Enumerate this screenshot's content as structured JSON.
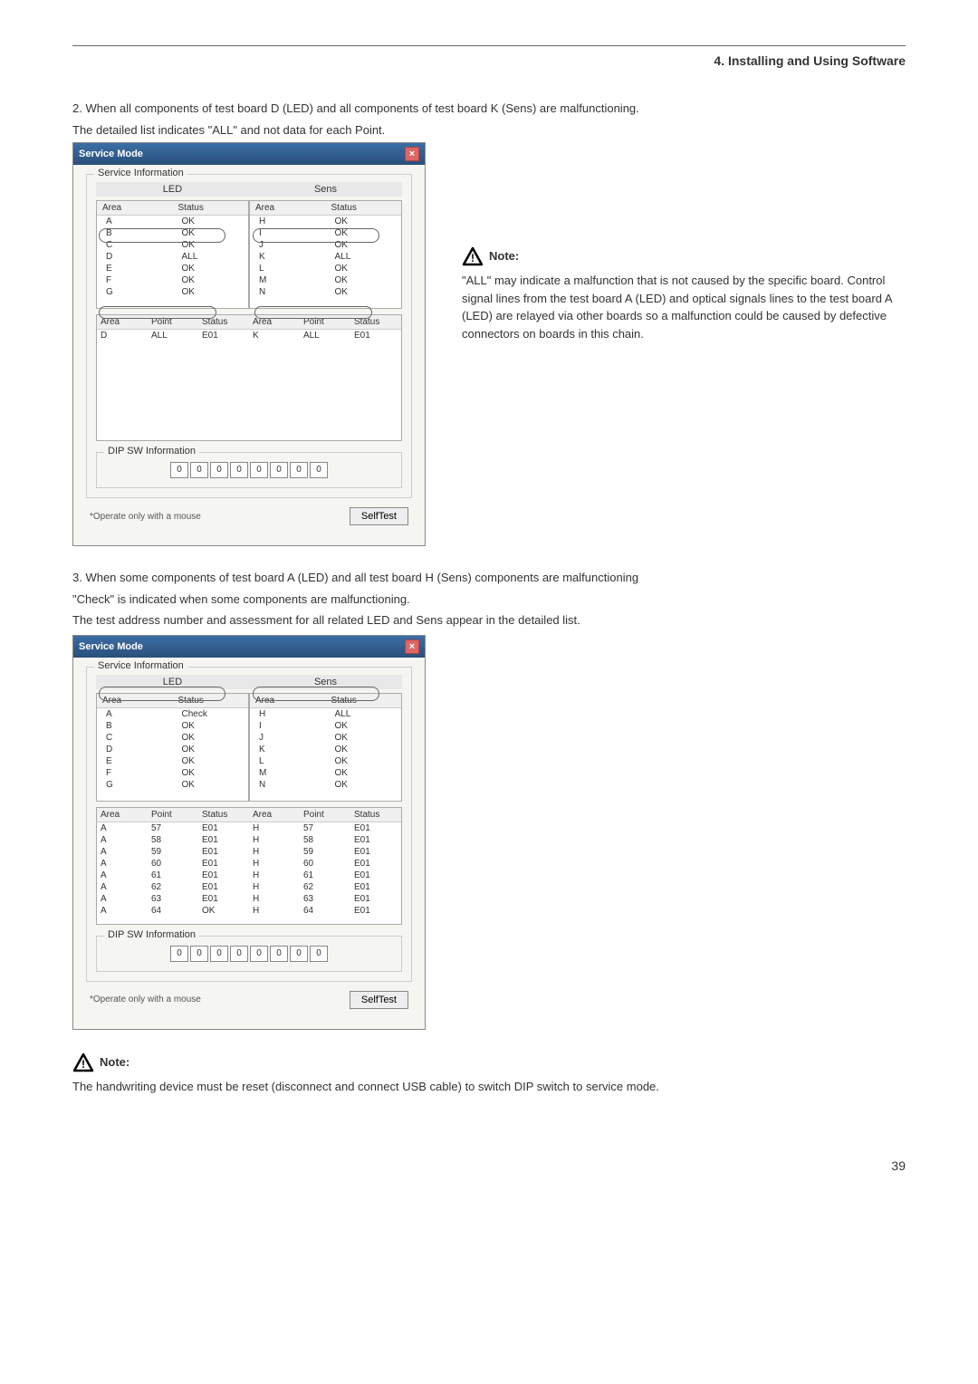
{
  "header": {
    "title": "4. Installing and Using Software"
  },
  "p1a": "2.  When all components of test board D (LED) and all components of test board K (Sens) are malfunctioning.",
  "p1b": "The detailed list indicates \"ALL\" and not data for each Point.",
  "p2a": "3.  When some components of test board A (LED) and all test board H (Sens) components are malfunctioning",
  "p2b": "\"Check\" is indicated when some components are malfunctioning.",
  "p2c": "The test address number and assessment for all related LED and Sens appear in the detailed list.",
  "dialog": {
    "title": "Service Mode",
    "svc_label": "Service Information",
    "led_label": "LED",
    "sens_label": "Sens",
    "area_hdr": "Area",
    "status_hdr": "Status",
    "point_hdr": "Point",
    "dip_label": "DIP SW Information",
    "foot": "*Operate only with a mouse",
    "btn": "SelfTest"
  },
  "d1": {
    "led_rows": [
      {
        "a": "A",
        "s": "OK"
      },
      {
        "a": "B",
        "s": "OK"
      },
      {
        "a": "C",
        "s": "OK"
      },
      {
        "a": "D",
        "s": "ALL"
      },
      {
        "a": "E",
        "s": "OK"
      },
      {
        "a": "F",
        "s": "OK"
      },
      {
        "a": "G",
        "s": "OK"
      }
    ],
    "sens_rows": [
      {
        "a": "H",
        "s": "OK"
      },
      {
        "a": "I",
        "s": "OK"
      },
      {
        "a": "J",
        "s": "OK"
      },
      {
        "a": "K",
        "s": "ALL"
      },
      {
        "a": "L",
        "s": "OK"
      },
      {
        "a": "M",
        "s": "OK"
      },
      {
        "a": "N",
        "s": "OK"
      }
    ],
    "detail": {
      "a1": "D",
      "p1": "ALL",
      "s1": "E01",
      "a2": "K",
      "p2": "ALL",
      "s2": "E01"
    },
    "dip": [
      "0",
      "0",
      "0",
      "0",
      "0",
      "0",
      "0",
      "0"
    ]
  },
  "d2": {
    "led_rows": [
      {
        "a": "A",
        "s": "Check"
      },
      {
        "a": "B",
        "s": "OK"
      },
      {
        "a": "C",
        "s": "OK"
      },
      {
        "a": "D",
        "s": "OK"
      },
      {
        "a": "E",
        "s": "OK"
      },
      {
        "a": "F",
        "s": "OK"
      },
      {
        "a": "G",
        "s": "OK"
      }
    ],
    "sens_rows": [
      {
        "a": "H",
        "s": "ALL"
      },
      {
        "a": "I",
        "s": "OK"
      },
      {
        "a": "J",
        "s": "OK"
      },
      {
        "a": "K",
        "s": "OK"
      },
      {
        "a": "L",
        "s": "OK"
      },
      {
        "a": "M",
        "s": "OK"
      },
      {
        "a": "N",
        "s": "OK"
      }
    ],
    "detail_rows": [
      {
        "a1": "A",
        "p1": "57",
        "s1": "E01",
        "a2": "H",
        "p2": "57",
        "s2": "E01"
      },
      {
        "a1": "A",
        "p1": "58",
        "s1": "E01",
        "a2": "H",
        "p2": "58",
        "s2": "E01"
      },
      {
        "a1": "A",
        "p1": "59",
        "s1": "E01",
        "a2": "H",
        "p2": "59",
        "s2": "E01"
      },
      {
        "a1": "A",
        "p1": "60",
        "s1": "E01",
        "a2": "H",
        "p2": "60",
        "s2": "E01"
      },
      {
        "a1": "A",
        "p1": "61",
        "s1": "E01",
        "a2": "H",
        "p2": "61",
        "s2": "E01"
      },
      {
        "a1": "A",
        "p1": "62",
        "s1": "E01",
        "a2": "H",
        "p2": "62",
        "s2": "E01"
      },
      {
        "a1": "A",
        "p1": "63",
        "s1": "E01",
        "a2": "H",
        "p2": "63",
        "s2": "E01"
      },
      {
        "a1": "A",
        "p1": "64",
        "s1": "OK",
        "a2": "H",
        "p2": "64",
        "s2": "E01"
      }
    ],
    "dip": [
      "0",
      "0",
      "0",
      "0",
      "0",
      "0",
      "0",
      "0"
    ]
  },
  "note1": {
    "head": "Note:",
    "body": "\"ALL\" may indicate a malfunction that is not caused by the specific board. Control signal lines from the test board A (LED) and optical signals lines to the test board A (LED) are relayed via other boards so a malfunction could be caused by defective connectors on boards in this chain."
  },
  "note2": {
    "head": "Note:",
    "body": "The handwriting device must be reset (disconnect and connect USB cable) to switch DIP switch to service mode."
  },
  "pagenum": "39"
}
